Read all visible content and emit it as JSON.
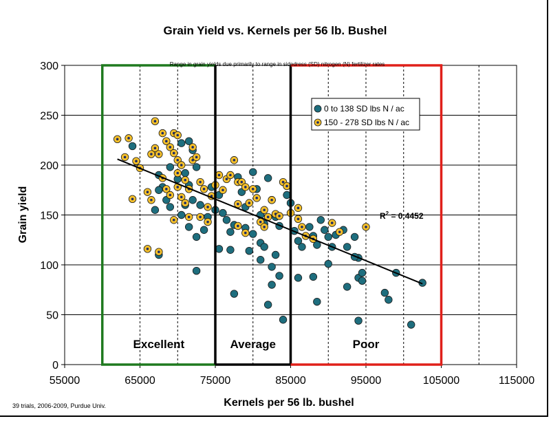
{
  "chart_data": {
    "type": "scatter",
    "title": "Grain Yield vs. Kernels per 56 lb. Bushel",
    "xlabel": "Kernels per 56 lb. bushel",
    "ylabel": "Grain yield",
    "xlim": [
      55000,
      115000
    ],
    "ylim": [
      0,
      300
    ],
    "xticks": [
      "55000",
      "65000",
      "75000",
      "85000",
      "95000",
      "105000",
      "115000"
    ],
    "yticks": [
      "0",
      "50",
      "100",
      "150",
      "200",
      "250",
      "300"
    ],
    "grid": "major horizontal solid; vertical dashed every 5000",
    "legend_position": "top-right",
    "annotation": "Range in grain yields due primarily to range in sidedress (SD) nitrogen (N) fertilizer rates",
    "credit": "39 trials, 2006-2009, Purdue Univ.",
    "r2_label": "R",
    "r2_sup": "2",
    "r2_value": " = 0.4452",
    "trendline": {
      "x": [
        62000,
        102500
      ],
      "y": [
        206,
        81
      ]
    },
    "zones": [
      {
        "label": "Excellent",
        "x_range": [
          60000,
          75000
        ],
        "color": "#1f7a1f"
      },
      {
        "label": "Average",
        "x_range": [
          75000,
          85000
        ],
        "color": "#000000"
      },
      {
        "label": "Poor",
        "x_range": [
          85000,
          105000
        ],
        "color": "#e0201a"
      }
    ],
    "series": [
      {
        "name": "0 to 138 SD lbs N / ac",
        "color": "#1e6e7e",
        "points": [
          [
            64000,
            219
          ],
          [
            67500,
            190
          ],
          [
            68000,
            178
          ],
          [
            67500,
            175
          ],
          [
            68500,
            165
          ],
          [
            67000,
            155
          ],
          [
            67500,
            110
          ],
          [
            69000,
            158
          ],
          [
            69000,
            198
          ],
          [
            70000,
            186
          ],
          [
            70500,
            222
          ],
          [
            71000,
            192
          ],
          [
            71500,
            224
          ],
          [
            72000,
            215
          ],
          [
            72500,
            198
          ],
          [
            71500,
            180
          ],
          [
            72000,
            165
          ],
          [
            71000,
            160
          ],
          [
            70500,
            150
          ],
          [
            71500,
            138
          ],
          [
            72500,
            128
          ],
          [
            73000,
            160
          ],
          [
            73500,
            135
          ],
          [
            74000,
            148
          ],
          [
            74500,
            178
          ],
          [
            72500,
            94
          ],
          [
            75000,
            155
          ],
          [
            75500,
            170
          ],
          [
            76000,
            152
          ],
          [
            76500,
            145
          ],
          [
            75500,
            116
          ],
          [
            77000,
            133
          ],
          [
            77500,
            140
          ],
          [
            77000,
            115
          ],
          [
            77500,
            71
          ],
          [
            78000,
            188
          ],
          [
            78500,
            173
          ],
          [
            79000,
            158
          ],
          [
            79500,
            114
          ],
          [
            79000,
            137
          ],
          [
            80000,
            193
          ],
          [
            80500,
            176
          ],
          [
            81000,
            150
          ],
          [
            81500,
            141
          ],
          [
            80000,
            131
          ],
          [
            81000,
            122
          ],
          [
            81000,
            105
          ],
          [
            81500,
            118
          ],
          [
            82000,
            187
          ],
          [
            82500,
            165
          ],
          [
            83000,
            148
          ],
          [
            83500,
            139
          ],
          [
            83000,
            110
          ],
          [
            82500,
            98
          ],
          [
            83500,
            89
          ],
          [
            82500,
            80
          ],
          [
            82000,
            60
          ],
          [
            84000,
            45
          ],
          [
            84500,
            170
          ],
          [
            85000,
            162
          ],
          [
            85500,
            134
          ],
          [
            86000,
            124
          ],
          [
            86500,
            118
          ],
          [
            86000,
            87
          ],
          [
            87500,
            138
          ],
          [
            88000,
            129
          ],
          [
            88500,
            120
          ],
          [
            88000,
            88
          ],
          [
            88500,
            63
          ],
          [
            89000,
            145
          ],
          [
            89500,
            135
          ],
          [
            90000,
            128
          ],
          [
            90500,
            118
          ],
          [
            90000,
            101
          ],
          [
            91000,
            130
          ],
          [
            92000,
            135
          ],
          [
            92500,
            118
          ],
          [
            92500,
            78
          ],
          [
            93500,
            128
          ],
          [
            94000,
            107
          ],
          [
            94000,
            87
          ],
          [
            94500,
            92
          ],
          [
            94000,
            44
          ],
          [
            94500,
            84
          ],
          [
            97500,
            72
          ],
          [
            98000,
            65
          ],
          [
            99000,
            92
          ],
          [
            101000,
            40
          ],
          [
            102500,
            82
          ],
          [
            93500,
            108
          ]
        ]
      },
      {
        "name": "150 - 278 SD lbs N / ac",
        "color": "#f5c02a",
        "points": [
          [
            62000,
            226
          ],
          [
            63000,
            208
          ],
          [
            63500,
            227
          ],
          [
            64000,
            166
          ],
          [
            64500,
            204
          ],
          [
            65000,
            197
          ],
          [
            66000,
            173
          ],
          [
            66000,
            116
          ],
          [
            66500,
            165
          ],
          [
            67000,
            244
          ],
          [
            67000,
            217
          ],
          [
            67500,
            211
          ],
          [
            68000,
            232
          ],
          [
            68500,
            224
          ],
          [
            69000,
            218
          ],
          [
            69500,
            232
          ],
          [
            69500,
            212
          ],
          [
            70000,
            230
          ],
          [
            70000,
            205
          ],
          [
            70500,
            200
          ],
          [
            67500,
            113
          ],
          [
            68000,
            187
          ],
          [
            68500,
            176
          ],
          [
            69000,
            170
          ],
          [
            69500,
            145
          ],
          [
            70000,
            192
          ],
          [
            70000,
            178
          ],
          [
            70500,
            168
          ],
          [
            71000,
            185
          ],
          [
            71500,
            176
          ],
          [
            71500,
            148
          ],
          [
            72000,
            218
          ],
          [
            72000,
            205
          ],
          [
            72500,
            208
          ],
          [
            73000,
            183
          ],
          [
            73500,
            176
          ],
          [
            74000,
            158
          ],
          [
            74500,
            169
          ],
          [
            74000,
            143
          ],
          [
            75000,
            180
          ],
          [
            75500,
            190
          ],
          [
            76000,
            175
          ],
          [
            76500,
            186
          ],
          [
            77000,
            190
          ],
          [
            77500,
            205
          ],
          [
            78000,
            183
          ],
          [
            78000,
            161
          ],
          [
            78500,
            183
          ],
          [
            79000,
            178
          ],
          [
            79500,
            162
          ],
          [
            80000,
            176
          ],
          [
            80500,
            167
          ],
          [
            81000,
            143
          ],
          [
            81500,
            155
          ],
          [
            81500,
            138
          ],
          [
            82000,
            148
          ],
          [
            82500,
            165
          ],
          [
            83000,
            151
          ],
          [
            83500,
            149
          ],
          [
            84000,
            183
          ],
          [
            84500,
            179
          ],
          [
            85000,
            152
          ],
          [
            86000,
            157
          ],
          [
            86000,
            146
          ],
          [
            86500,
            138
          ],
          [
            87000,
            129
          ],
          [
            78000,
            139
          ],
          [
            79000,
            132
          ],
          [
            88000,
            126
          ],
          [
            90500,
            142
          ],
          [
            91500,
            133
          ],
          [
            95000,
            138
          ],
          [
            66500,
            211
          ],
          [
            71000,
            162
          ],
          [
            73000,
            148
          ]
        ]
      }
    ]
  }
}
